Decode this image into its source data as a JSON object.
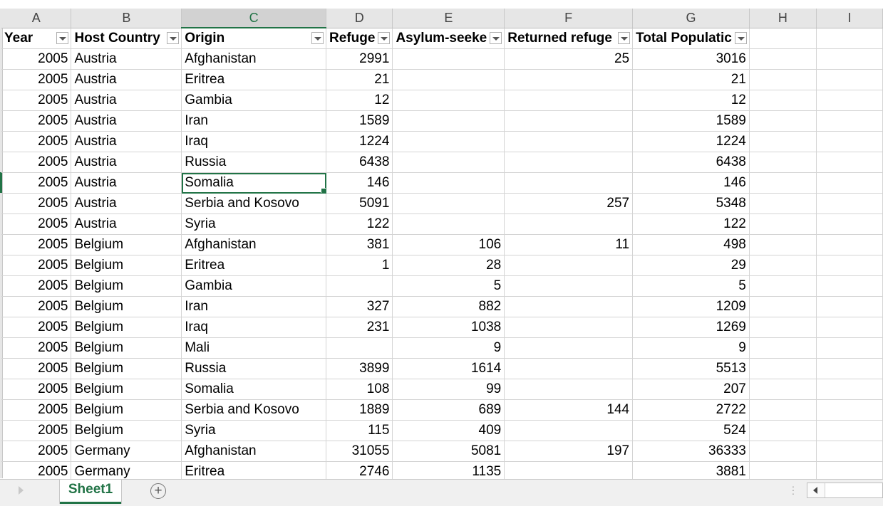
{
  "columns": [
    "A",
    "B",
    "C",
    "D",
    "E",
    "F",
    "G",
    "H",
    "I"
  ],
  "selected_column": "C",
  "headers": [
    "Year",
    "Host Country",
    "Origin",
    "Refugees",
    "Asylum-seekers",
    "Returned refugees",
    "Total Population"
  ],
  "headers_visible": [
    "Year",
    "Host Country",
    "Origin",
    "Refuge",
    "Asylum-seeke",
    "Returned refuge",
    "Total Populatic"
  ],
  "rows": [
    [
      "2005",
      "Austria",
      "Afghanistan",
      "2991",
      "",
      "25",
      "3016"
    ],
    [
      "2005",
      "Austria",
      "Eritrea",
      "21",
      "",
      "",
      "21"
    ],
    [
      "2005",
      "Austria",
      "Gambia",
      "12",
      "",
      "",
      "12"
    ],
    [
      "2005",
      "Austria",
      "Iran",
      "1589",
      "",
      "",
      "1589"
    ],
    [
      "2005",
      "Austria",
      "Iraq",
      "1224",
      "",
      "",
      "1224"
    ],
    [
      "2005",
      "Austria",
      "Russia",
      "6438",
      "",
      "",
      "6438"
    ],
    [
      "2005",
      "Austria",
      "Somalia",
      "146",
      "",
      "",
      "146"
    ],
    [
      "2005",
      "Austria",
      "Serbia and Kosovo",
      "5091",
      "",
      "257",
      "5348"
    ],
    [
      "2005",
      "Austria",
      "Syria",
      "122",
      "",
      "",
      "122"
    ],
    [
      "2005",
      "Belgium",
      "Afghanistan",
      "381",
      "106",
      "11",
      "498"
    ],
    [
      "2005",
      "Belgium",
      "Eritrea",
      "1",
      "28",
      "",
      "29"
    ],
    [
      "2005",
      "Belgium",
      "Gambia",
      "",
      "5",
      "",
      "5"
    ],
    [
      "2005",
      "Belgium",
      "Iran",
      "327",
      "882",
      "",
      "1209"
    ],
    [
      "2005",
      "Belgium",
      "Iraq",
      "231",
      "1038",
      "",
      "1269"
    ],
    [
      "2005",
      "Belgium",
      "Mali",
      "",
      "9",
      "",
      "9"
    ],
    [
      "2005",
      "Belgium",
      "Russia",
      "3899",
      "1614",
      "",
      "5513"
    ],
    [
      "2005",
      "Belgium",
      "Somalia",
      "108",
      "99",
      "",
      "207"
    ],
    [
      "2005",
      "Belgium",
      "Serbia and Kosovo",
      "1889",
      "689",
      "144",
      "2722"
    ],
    [
      "2005",
      "Belgium",
      "Syria",
      "115",
      "409",
      "",
      "524"
    ],
    [
      "2005",
      "Germany",
      "Afghanistan",
      "31055",
      "5081",
      "197",
      "36333"
    ],
    [
      "2005",
      "Germany",
      "Eritrea",
      "2746",
      "1135",
      "",
      "3881"
    ]
  ],
  "active_cell": {
    "row": 6,
    "col": 2
  },
  "sheet_tab": "Sheet1",
  "add_sheet_symbol": "+",
  "colors": {
    "accent": "#217346",
    "header_bg": "#e6e6e6",
    "grid": "#d4d4d4"
  }
}
